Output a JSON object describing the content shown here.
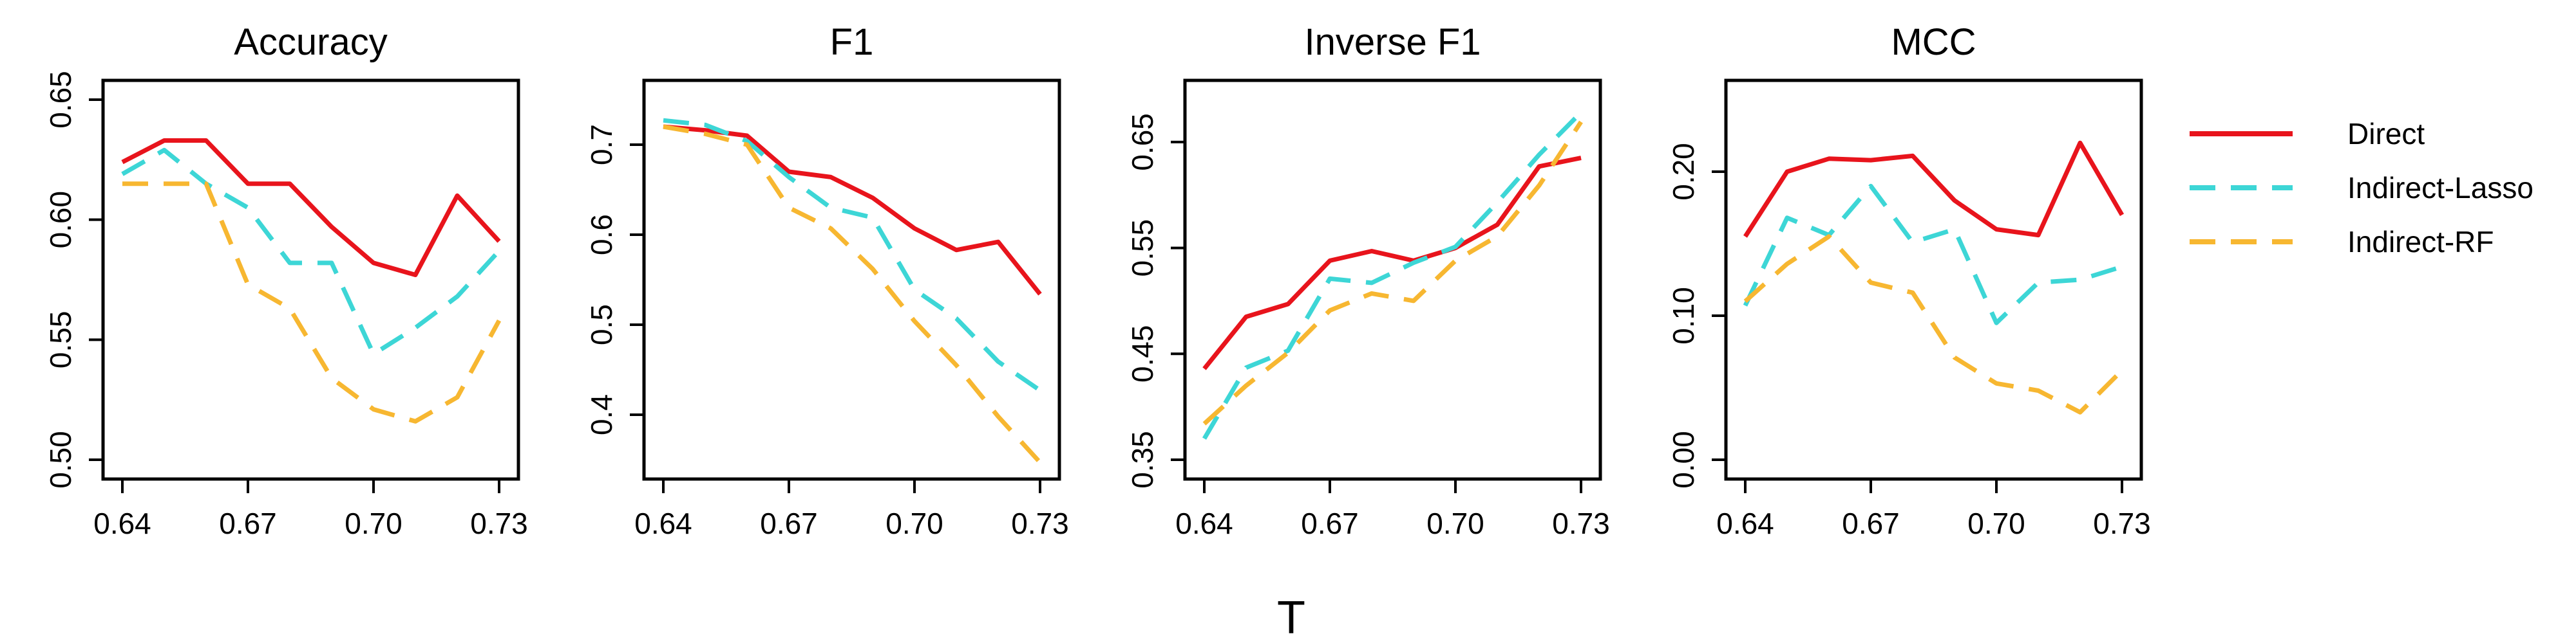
{
  "xlabel": "T",
  "colors": {
    "Direct": "#e8141c",
    "Indirect-Lasso": "#3dd6d6",
    "Indirect-RF": "#f7b731"
  },
  "legend": [
    {
      "name": "Direct",
      "dash": "solid"
    },
    {
      "name": "Indirect-Lasso",
      "dash": "dashed"
    },
    {
      "name": "Indirect-RF",
      "dash": "dashed"
    }
  ],
  "chart_data": [
    {
      "type": "line",
      "title": "Accuracy",
      "x": [
        0.64,
        0.65,
        0.66,
        0.67,
        0.68,
        0.69,
        0.7,
        0.71,
        0.72,
        0.73
      ],
      "xticks": [
        "0.64",
        "0.67",
        "0.70",
        "0.73"
      ],
      "xlim": [
        0.64,
        0.73
      ],
      "ylim": [
        0.5,
        0.65
      ],
      "yticks": [
        "0.50",
        "0.55",
        "0.60",
        "0.65"
      ],
      "series": [
        {
          "name": "Direct",
          "values": [
            0.624,
            0.633,
            0.633,
            0.615,
            0.615,
            0.597,
            0.582,
            0.577,
            0.61,
            0.591
          ]
        },
        {
          "name": "Indirect-Lasso",
          "values": [
            0.619,
            0.629,
            0.615,
            0.605,
            0.582,
            0.582,
            0.544,
            0.555,
            0.568,
            0.587
          ]
        },
        {
          "name": "Indirect-RF",
          "values": [
            0.615,
            0.615,
            0.615,
            0.573,
            0.563,
            0.534,
            0.521,
            0.516,
            0.526,
            0.558
          ]
        }
      ]
    },
    {
      "type": "line",
      "title": "F1",
      "x": [
        0.64,
        0.65,
        0.66,
        0.67,
        0.68,
        0.69,
        0.7,
        0.71,
        0.72,
        0.73
      ],
      "xticks": [
        "0.64",
        "0.67",
        "0.70",
        "0.73"
      ],
      "xlim": [
        0.64,
        0.73
      ],
      "ylim": [
        0.35,
        0.75
      ],
      "yticks": [
        "0.4",
        "0.5",
        "0.6",
        "0.7"
      ],
      "series": [
        {
          "name": "Direct",
          "values": [
            0.72,
            0.716,
            0.71,
            0.67,
            0.664,
            0.641,
            0.607,
            0.583,
            0.592,
            0.534
          ]
        },
        {
          "name": "Indirect-Lasso",
          "values": [
            0.727,
            0.722,
            0.704,
            0.664,
            0.63,
            0.619,
            0.539,
            0.507,
            0.459,
            0.427
          ]
        },
        {
          "name": "Indirect-RF",
          "values": [
            0.72,
            0.712,
            0.7,
            0.63,
            0.607,
            0.562,
            0.504,
            0.455,
            0.398,
            0.347
          ]
        }
      ]
    },
    {
      "type": "line",
      "title": "Inverse F1",
      "x": [
        0.64,
        0.65,
        0.66,
        0.67,
        0.68,
        0.69,
        0.7,
        0.71,
        0.72,
        0.73
      ],
      "xticks": [
        "0.64",
        "0.67",
        "0.70",
        "0.73"
      ],
      "xlim": [
        0.64,
        0.73
      ],
      "ylim": [
        0.35,
        0.69
      ],
      "yticks": [
        "0.35",
        "0.45",
        "0.55",
        "0.65"
      ],
      "series": [
        {
          "name": "Direct",
          "values": [
            0.436,
            0.485,
            0.497,
            0.538,
            0.547,
            0.538,
            0.55,
            0.572,
            0.627,
            0.635
          ]
        },
        {
          "name": "Indirect-Lasso",
          "values": [
            0.37,
            0.437,
            0.453,
            0.521,
            0.517,
            0.536,
            0.551,
            0.593,
            0.638,
            0.678
          ]
        },
        {
          "name": "Indirect-RF",
          "values": [
            0.384,
            0.42,
            0.451,
            0.491,
            0.507,
            0.5,
            0.538,
            0.561,
            0.609,
            0.669
          ]
        }
      ]
    },
    {
      "type": "line",
      "title": "MCC",
      "x": [
        0.64,
        0.65,
        0.66,
        0.67,
        0.68,
        0.69,
        0.7,
        0.71,
        0.72,
        0.73
      ],
      "xticks": [
        "0.64",
        "0.67",
        "0.70",
        "0.73"
      ],
      "xlim": [
        0.64,
        0.73
      ],
      "ylim": [
        0.0,
        0.25
      ],
      "yticks": [
        "0.00",
        "0.10",
        "0.20"
      ],
      "series": [
        {
          "name": "Direct",
          "values": [
            0.155,
            0.2,
            0.209,
            0.208,
            0.211,
            0.18,
            0.16,
            0.156,
            0.22,
            0.17
          ]
        },
        {
          "name": "Indirect-Lasso",
          "values": [
            0.107,
            0.168,
            0.156,
            0.19,
            0.151,
            0.16,
            0.095,
            0.123,
            0.125,
            0.134
          ]
        },
        {
          "name": "Indirect-RF",
          "values": [
            0.11,
            0.136,
            0.155,
            0.123,
            0.116,
            0.071,
            0.053,
            0.048,
            0.033,
            0.062
          ]
        }
      ]
    }
  ]
}
